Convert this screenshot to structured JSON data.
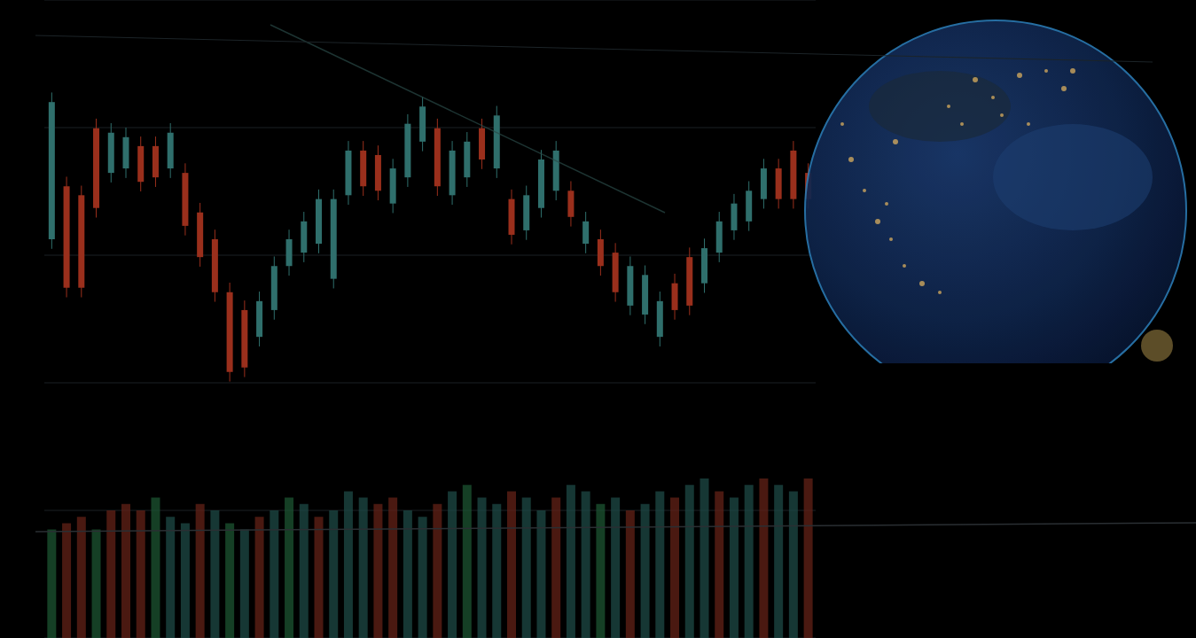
{
  "chart_data": {
    "type": "candlestick",
    "categories": [
      null,
      null,
      null,
      null,
      null,
      null,
      null,
      null,
      null,
      null,
      null,
      null,
      null,
      null,
      null,
      null,
      null,
      null,
      null,
      null,
      null,
      null,
      null,
      null,
      null,
      null,
      null,
      null,
      null,
      null,
      null,
      null,
      null,
      null,
      null,
      null,
      null,
      null,
      null,
      null,
      null,
      null,
      null,
      null,
      null,
      null,
      null,
      null,
      null,
      null,
      null,
      null
    ],
    "ylim": [
      0,
      100
    ],
    "yticks": [
      0,
      20,
      40,
      60,
      80,
      100
    ],
    "grid": true,
    "tick_labels": false,
    "series": [
      {
        "type": "candlestick",
        "open": [
          62.5,
          70.8,
          69.4,
          79.9,
          72.9,
          73.6,
          77.1,
          77.1,
          73.6,
          72.9,
          66.7,
          62.5,
          54.2,
          51.4,
          47.2,
          51.4,
          58.3,
          60.4,
          61.8,
          56.3,
          69.4,
          76.4,
          75.7,
          68.1,
          72.2,
          77.8,
          79.9,
          69.4,
          72.2,
          79.9,
          73.6,
          68.8,
          63.9,
          67.4,
          70.1,
          70.1,
          61.8,
          62.5,
          60.4,
          52.1,
          50.7,
          47.2,
          55.6,
          59.7,
          55.6,
          60.4,
          63.9,
          65.3,
          68.8,
          73.6,
          76.4,
          72.9
        ],
        "high": [
          85.5,
          72.3,
          70.9,
          81.4,
          80.7,
          80.0,
          78.6,
          78.6,
          80.7,
          74.4,
          68.2,
          64.0,
          55.7,
          52.9,
          54.3,
          59.8,
          64.0,
          66.8,
          70.3,
          70.3,
          77.9,
          77.9,
          77.2,
          75.1,
          82.1,
          84.8,
          81.4,
          77.9,
          79.3,
          81.4,
          83.4,
          70.3,
          70.9,
          76.5,
          77.9,
          71.6,
          66.8,
          64.0,
          61.9,
          59.8,
          58.4,
          54.3,
          57.1,
          61.2,
          62.6,
          66.8,
          69.6,
          71.6,
          75.1,
          75.1,
          77.9,
          74.4
        ],
        "low": [
          61.0,
          53.4,
          53.4,
          65.9,
          71.4,
          72.1,
          70.0,
          70.7,
          72.1,
          63.1,
          58.2,
          52.7,
          40.2,
          40.9,
          45.7,
          49.9,
          56.8,
          58.9,
          60.3,
          54.8,
          67.9,
          69.3,
          68.6,
          66.6,
          70.7,
          76.3,
          69.3,
          67.9,
          70.7,
          73.5,
          72.1,
          61.7,
          62.4,
          65.9,
          68.6,
          64.5,
          60.3,
          56.8,
          52.7,
          50.6,
          49.2,
          45.7,
          49.9,
          50.6,
          54.1,
          58.9,
          62.4,
          63.8,
          67.3,
          67.3,
          67.3,
          67.3
        ],
        "close": [
          84.0,
          54.9,
          54.9,
          67.4,
          79.2,
          78.5,
          71.5,
          72.2,
          79.2,
          64.6,
          59.7,
          54.2,
          41.7,
          42.4,
          52.8,
          58.3,
          62.5,
          65.3,
          68.8,
          68.8,
          76.4,
          70.8,
          70.1,
          73.6,
          80.6,
          83.3,
          70.8,
          76.4,
          77.8,
          75.0,
          81.9,
          63.2,
          69.4,
          75.0,
          76.4,
          66.0,
          65.3,
          58.3,
          54.2,
          58.3,
          56.9,
          52.8,
          51.4,
          52.1,
          61.1,
          65.3,
          68.1,
          70.1,
          73.6,
          68.8,
          68.8,
          68.8
        ],
        "colors": [
          "#2f6f6c",
          "#9a2f1c",
          "#9a2f1c",
          "#9a2f1c",
          "#2f6f6c",
          "#2f6f6c",
          "#9a2f1c",
          "#9a2f1c",
          "#2f6f6c",
          "#9a2f1c",
          "#9a2f1c",
          "#9a2f1c",
          "#9a2f1c",
          "#9a2f1c",
          "#2f6f6c",
          "#2f6f6c",
          "#2f6f6c",
          "#2f6f6c",
          "#2f6f6c",
          "#2f6f6c",
          "#2f6f6c",
          "#9a2f1c",
          "#9a2f1c",
          "#2f6f6c",
          "#2f6f6c",
          "#2f6f6c",
          "#9a2f1c",
          "#2f6f6c",
          "#2f6f6c",
          "#9a2f1c",
          "#2f6f6c",
          "#9a2f1c",
          "#2f6f6c",
          "#2f6f6c",
          "#2f6f6c",
          "#9a2f1c",
          "#2f6f6c",
          "#9a2f1c",
          "#9a2f1c",
          "#2f6f6c",
          "#2f6f6c",
          "#2f6f6c",
          "#9a2f1c",
          "#9a2f1c",
          "#2f6f6c",
          "#2f6f6c",
          "#2f6f6c",
          "#2f6f6c",
          "#2f6f6c",
          "#9a2f1c",
          "#9a2f1c",
          "#9a2f1c"
        ]
      },
      {
        "type": "bar",
        "values": [
          17,
          18,
          19,
          17,
          20,
          21,
          20,
          22,
          19,
          18,
          21,
          20,
          18,
          17,
          19,
          20,
          22,
          21,
          19,
          20,
          23,
          22,
          21,
          22,
          20,
          19,
          21,
          23,
          24,
          22,
          21,
          23,
          22,
          20,
          22,
          24,
          23,
          21,
          22,
          20,
          21,
          23,
          22,
          24,
          25,
          23,
          22,
          24,
          25,
          24,
          23,
          25
        ],
        "colors": [
          "#1e5a35",
          "#6a2418",
          "#6a2418",
          "#1e5a35",
          "#6a2418",
          "#6a2418",
          "#6a2418",
          "#1e5a35",
          "#1f4f4a",
          "#1f4f4a",
          "#6a2418",
          "#1f4f4a",
          "#1e5a35",
          "#1f4f4a",
          "#6a2418",
          "#1f4f4a",
          "#1e5a35",
          "#1f4f4a",
          "#6a2418",
          "#1f4f4a",
          "#1f4f4a",
          "#1f4f4a",
          "#6a2418",
          "#6a2418",
          "#1f4f4a",
          "#1f4f4a",
          "#6a2418",
          "#1f4f4a",
          "#1e5a35",
          "#1f4f4a",
          "#1f4f4a",
          "#6a2418",
          "#1f4f4a",
          "#1f4f4a",
          "#6a2418",
          "#1f4f4a",
          "#1f4f4a",
          "#1e5a35",
          "#1f4f4a",
          "#6a2418",
          "#1f4f4a",
          "#1f4f4a",
          "#6a2418",
          "#1f4f4a",
          "#1f4f4a",
          "#6a2418",
          "#1f4f4a",
          "#1f4f4a",
          "#6a2418",
          "#1f4f4a",
          "#1f4f4a",
          "#6a2418"
        ]
      }
    ]
  }
}
